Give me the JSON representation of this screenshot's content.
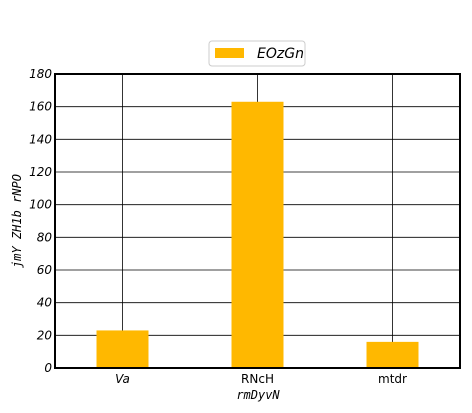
{
  "chart_data": {
    "type": "bar",
    "categories": [
      "Va",
      "RNcH",
      "mtdr"
    ],
    "category_italic": [
      true,
      false,
      false
    ],
    "series": [
      {
        "name": "EOzGn",
        "values": [
          23,
          163,
          16
        ],
        "color": "#ffb800"
      }
    ],
    "xlabel": "rmDyvN",
    "ylabel": "jmY ZH1b rNPO",
    "ylim": [
      0,
      180
    ],
    "yticks": [
      0,
      20,
      40,
      60,
      80,
      100,
      120,
      140,
      160,
      180
    ],
    "grid": true,
    "legend_position": "top-center"
  }
}
